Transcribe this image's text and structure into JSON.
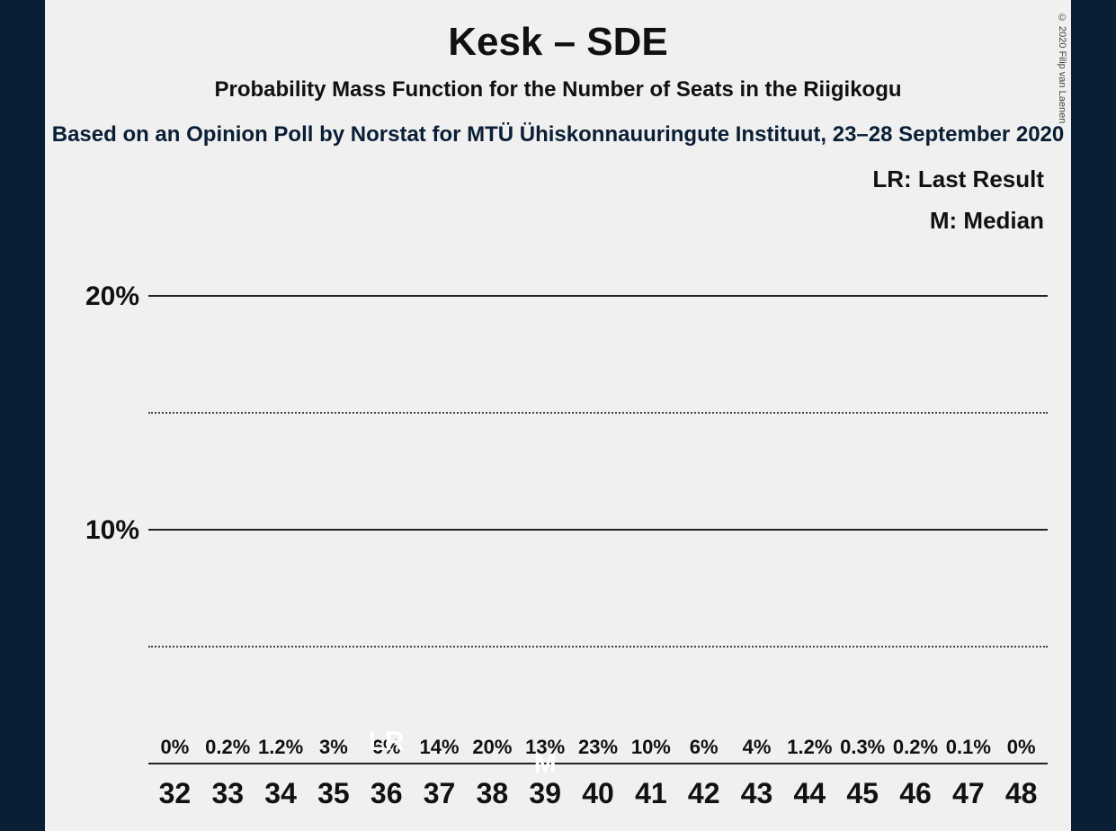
{
  "chart": {
    "type": "bar",
    "title": "Kesk – SDE",
    "subtitle": "Probability Mass Function for the Number of Seats in the Riigikogu",
    "subsubtitle": "Based on an Opinion Poll by Norstat for MTÜ Ühiskonnauuringute Instituut, 23–28 September 2020",
    "legend_lr": "LR: Last Result",
    "legend_m": "M: Median",
    "copyright": "© 2020 Filip van Laenen",
    "background_color": "#f0f0f0",
    "side_band_color": "#0a1e35",
    "text_color": "#111111",
    "title_fontsize": 44,
    "subtitle_fontsize": 24,
    "axis_label_fontsize": 30,
    "bar_label_fontsize": 22,
    "x_label_fontsize": 32,
    "colors": {
      "green": "#0f8f63",
      "red": "#e02020",
      "marker_text": "#ffffff"
    },
    "y_axis": {
      "min": 0,
      "max": 25,
      "ticks_solid": [
        10,
        20
      ],
      "ticks_dotted": [
        5,
        15
      ],
      "tick_labels": {
        "10": "10%",
        "20": "20%"
      }
    },
    "categories": [
      "32",
      "33",
      "34",
      "35",
      "36",
      "37",
      "38",
      "39",
      "40",
      "41",
      "42",
      "43",
      "44",
      "45",
      "46",
      "47",
      "48"
    ],
    "values": [
      0,
      0.2,
      1.2,
      3,
      6,
      14,
      20,
      13,
      23,
      10,
      6,
      4,
      1.2,
      0.3,
      0.2,
      0.1,
      0
    ],
    "bar_labels": [
      "0%",
      "0.2%",
      "1.2%",
      "3%",
      "6%",
      "14%",
      "20%",
      "13%",
      "23%",
      "10%",
      "6%",
      "4%",
      "1.2%",
      "0.3%",
      "0.2%",
      "0.1%",
      "0%"
    ],
    "bar_color_keys": [
      "green",
      "red",
      "green",
      "red",
      "green",
      "red",
      "green",
      "red",
      "green",
      "red",
      "green",
      "red",
      "green",
      "red",
      "green",
      "red",
      "green"
    ],
    "markers": {
      "36": {
        "text": "LR",
        "pos": "bottom"
      },
      "39": {
        "text": "M",
        "pos": "mid"
      }
    }
  }
}
